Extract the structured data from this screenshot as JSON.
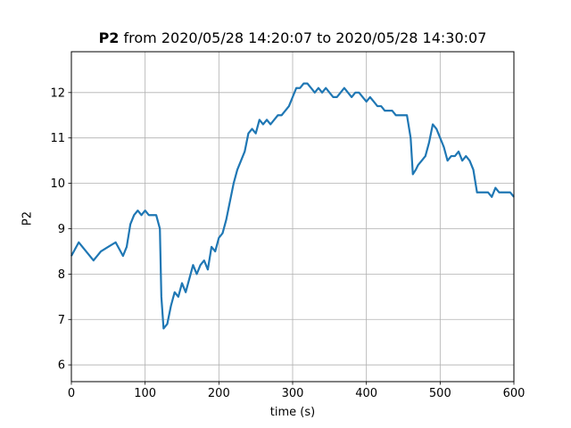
{
  "chart_data": {
    "type": "line",
    "title_bold": "P2",
    "title_rest": " from 2020/05/28 14:20:07 to 2020/05/28 14:30:07",
    "xlabel": "time (s)",
    "ylabel": "P2",
    "xlim": [
      0,
      600
    ],
    "ylim": [
      5.63,
      12.9
    ],
    "xticks": [
      0,
      100,
      200,
      300,
      400,
      500,
      600
    ],
    "yticks": [
      6,
      7,
      8,
      9,
      10,
      11,
      12
    ],
    "grid": true,
    "line_color": "#1f77b4",
    "series": [
      {
        "x": [
          0,
          10,
          20,
          30,
          40,
          50,
          60,
          70,
          75,
          80,
          85,
          90,
          95,
          100,
          105,
          110,
          115,
          120,
          122,
          125,
          130,
          135,
          140,
          145,
          150,
          155,
          160,
          165,
          170,
          175,
          180,
          185,
          190,
          195,
          200,
          205,
          210,
          215,
          220,
          225,
          230,
          235,
          240,
          245,
          250,
          255,
          260,
          265,
          270,
          275,
          280,
          285,
          290,
          295,
          300,
          305,
          310,
          315,
          320,
          325,
          330,
          335,
          340,
          345,
          350,
          355,
          360,
          365,
          370,
          375,
          380,
          385,
          390,
          395,
          400,
          405,
          410,
          415,
          420,
          425,
          430,
          435,
          440,
          445,
          450,
          455,
          460,
          463,
          467,
          470,
          475,
          480,
          485,
          490,
          495,
          500,
          505,
          510,
          515,
          520,
          525,
          530,
          535,
          540,
          545,
          550,
          555,
          560,
          565,
          570,
          575,
          580,
          585,
          590,
          595,
          600
        ],
        "values": [
          8.4,
          8.7,
          8.5,
          8.3,
          8.5,
          8.6,
          8.7,
          8.4,
          8.6,
          9.1,
          9.3,
          9.4,
          9.3,
          9.4,
          9.3,
          9.3,
          9.3,
          9.0,
          7.5,
          6.8,
          6.9,
          7.3,
          7.6,
          7.5,
          7.8,
          7.6,
          7.9,
          8.2,
          8.0,
          8.2,
          8.3,
          8.1,
          8.6,
          8.5,
          8.8,
          8.9,
          9.2,
          9.6,
          10.0,
          10.3,
          10.5,
          10.7,
          11.1,
          11.2,
          11.1,
          11.4,
          11.3,
          11.4,
          11.3,
          11.4,
          11.5,
          11.5,
          11.6,
          11.7,
          11.9,
          12.1,
          12.1,
          12.2,
          12.2,
          12.1,
          12.0,
          12.1,
          12.0,
          12.1,
          12.0,
          11.9,
          11.9,
          12.0,
          12.1,
          12.0,
          11.9,
          12.0,
          12.0,
          11.9,
          11.8,
          11.9,
          11.8,
          11.7,
          11.7,
          11.6,
          11.6,
          11.6,
          11.5,
          11.5,
          11.5,
          11.5,
          11.0,
          10.2,
          10.3,
          10.4,
          10.5,
          10.6,
          10.9,
          11.3,
          11.2,
          11.0,
          10.8,
          10.5,
          10.6,
          10.6,
          10.7,
          10.5,
          10.6,
          10.5,
          10.3,
          9.8,
          9.8,
          9.8,
          9.8,
          9.7,
          9.9,
          9.8,
          9.8,
          9.8,
          9.8,
          9.7
        ]
      }
    ]
  }
}
